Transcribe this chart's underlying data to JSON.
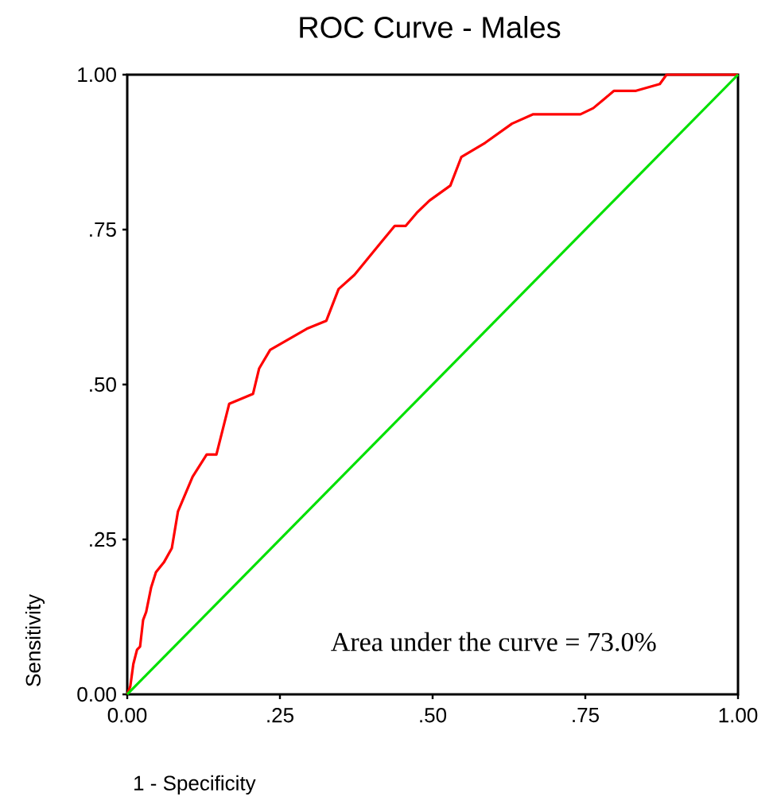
{
  "chart_data": {
    "type": "line",
    "title": "ROC Curve - Males",
    "xlabel": "1 - Specificity",
    "ylabel": "Sensitivity",
    "x": [
      0,
      0.005,
      0.01,
      0.016,
      0.021,
      0.026,
      0.031,
      0.039,
      0.047,
      0.06,
      0.073,
      0.083,
      0.107,
      0.13,
      0.146,
      0.167,
      0.206,
      0.216,
      0.234,
      0.294,
      0.326,
      0.346,
      0.372,
      0.417,
      0.438,
      0.456,
      0.474,
      0.495,
      0.529,
      0.547,
      0.586,
      0.63,
      0.664,
      0.742,
      0.763,
      0.797,
      0.833,
      0.872,
      0.883,
      1
    ],
    "series": [
      {
        "color": "#ff0000",
        "values": [
          0,
          0.013,
          0.049,
          0.072,
          0.077,
          0.12,
          0.133,
          0.172,
          0.197,
          0.213,
          0.236,
          0.295,
          0.351,
          0.387,
          0.387,
          0.469,
          0.485,
          0.526,
          0.556,
          0.59,
          0.603,
          0.654,
          0.677,
          0.731,
          0.756,
          0.756,
          0.777,
          0.797,
          0.821,
          0.867,
          0.89,
          0.921,
          0.936,
          0.936,
          0.946,
          0.974,
          0.974,
          0.985,
          1,
          1
        ]
      },
      {
        "color": "#00e000",
        "x": [
          0,
          1
        ],
        "values": [
          0,
          1
        ]
      }
    ],
    "xlim": [
      0,
      1
    ],
    "ylim": [
      0,
      1
    ],
    "xticks": [
      {
        "value": 0,
        "label": "0.00"
      },
      {
        "value": 0.25,
        "label": ".25"
      },
      {
        "value": 0.5,
        "label": ".50"
      },
      {
        "value": 0.75,
        "label": ".75"
      },
      {
        "value": 1,
        "label": "1.00"
      }
    ],
    "yticks": [
      {
        "value": 0,
        "label": "0.00"
      },
      {
        "value": 0.25,
        "label": ".25"
      },
      {
        "value": 0.5,
        "label": ".50"
      },
      {
        "value": 0.75,
        "label": ".75"
      },
      {
        "value": 1,
        "label": "1.00"
      }
    ],
    "annotations": [
      "Area under the curve = 73.0%"
    ],
    "grid": false,
    "marker": "none",
    "line_style": "solid"
  }
}
